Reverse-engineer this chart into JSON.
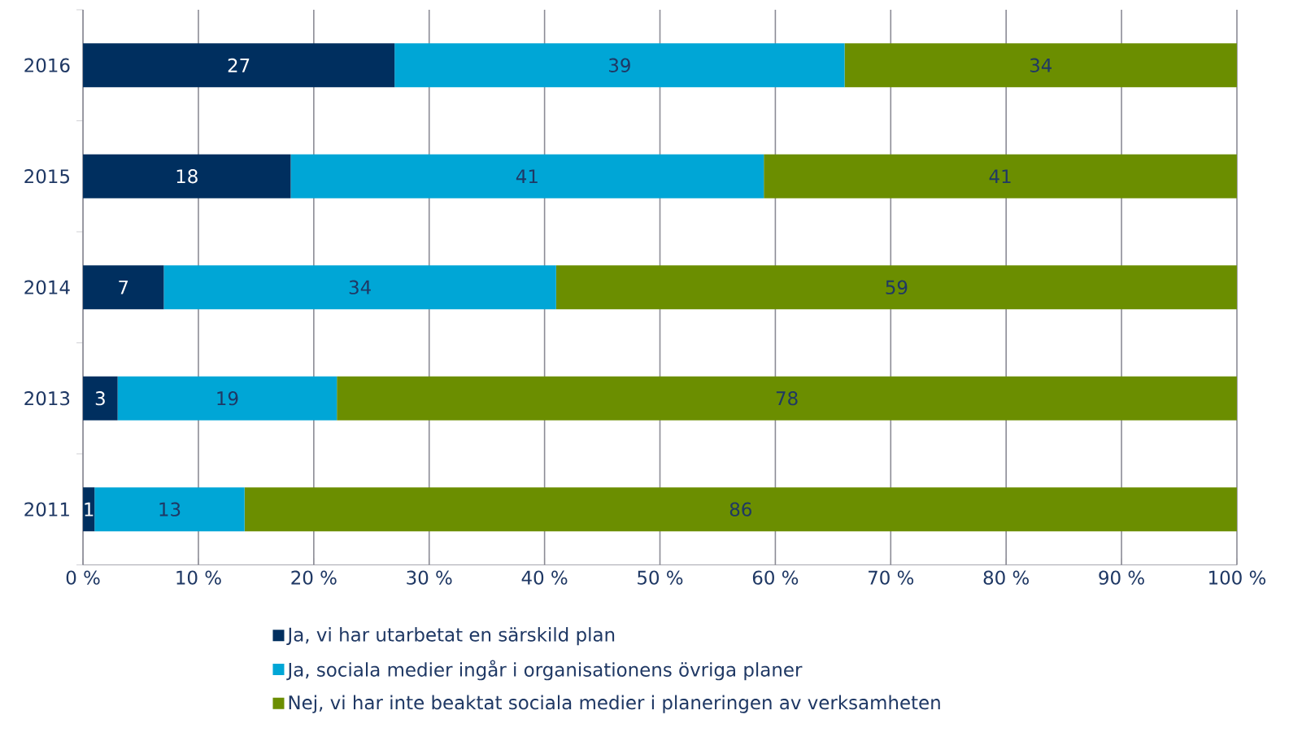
{
  "chart_data": {
    "type": "bar",
    "orientation": "horizontal",
    "stacked": true,
    "categories": [
      "2016",
      "2015",
      "2014",
      "2013",
      "2011"
    ],
    "series": [
      {
        "name": "Ja, vi har utarbetat en särskild plan",
        "color": "#002f5f",
        "values": [
          27,
          18,
          7,
          3,
          1
        ]
      },
      {
        "name": "Ja, sociala medier ingår i organisationens övriga planer",
        "color": "#00a6d6",
        "values": [
          39,
          41,
          34,
          19,
          13
        ]
      },
      {
        "name": "Nej, vi har inte beaktat sociala medier i planeringen av verksamheten",
        "color": "#6b8e00",
        "values": [
          34,
          41,
          59,
          78,
          86
        ]
      }
    ],
    "xlim": [
      0,
      100
    ],
    "xticks": [
      {
        "value": 0,
        "label": "0 %"
      },
      {
        "value": 10,
        "label": "10 %"
      },
      {
        "value": 20,
        "label": "20 %"
      },
      {
        "value": 30,
        "label": "30 %"
      },
      {
        "value": 40,
        "label": "40 %"
      },
      {
        "value": 50,
        "label": "50 %"
      },
      {
        "value": 60,
        "label": "60 %"
      },
      {
        "value": 70,
        "label": "70 %"
      },
      {
        "value": 80,
        "label": "80 %"
      },
      {
        "value": 90,
        "label": "90 %"
      },
      {
        "value": 100,
        "label": "100 %"
      }
    ],
    "grid": "x",
    "legend": "bottom",
    "data_labels": true
  }
}
